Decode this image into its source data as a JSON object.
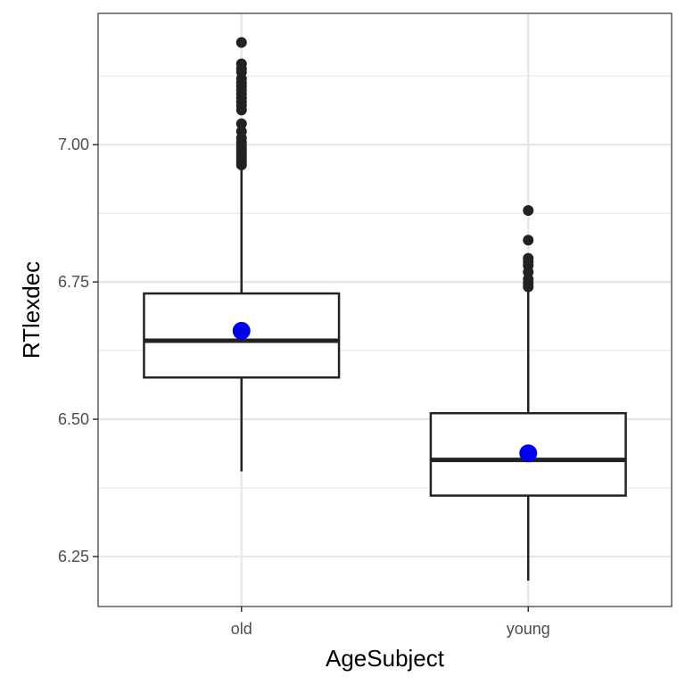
{
  "chart_data": {
    "type": "boxplot",
    "xlabel": "AgeSubject",
    "ylabel": "RTlexdec",
    "ylim": [
      6.159,
      7.239
    ],
    "y_ticks": [
      6.25,
      6.5,
      6.75,
      7.0
    ],
    "y_tick_labels": [
      "6.25",
      "6.50",
      "6.75",
      "7.00"
    ],
    "y_minor_ticks": [
      6.375,
      6.625,
      6.875,
      7.125
    ],
    "grid": true,
    "categories": [
      "old",
      "young"
    ],
    "boxes": [
      {
        "category": "old",
        "whisker_low": 6.405,
        "q1": 6.576,
        "median": 6.643,
        "q3": 6.729,
        "whisker_high": 6.958,
        "mean": 6.661,
        "outliers": [
          6.963,
          6.968,
          6.973,
          6.978,
          6.983,
          6.988,
          6.993,
          6.998,
          7.004,
          7.012,
          7.024,
          7.038,
          7.063,
          7.071,
          7.078,
          7.085,
          7.092,
          7.099,
          7.106,
          7.113,
          7.12,
          7.132,
          7.138,
          7.147,
          7.186
        ]
      },
      {
        "category": "young",
        "whisker_low": 6.206,
        "q1": 6.361,
        "median": 6.426,
        "q3": 6.511,
        "whisker_high": 6.733,
        "mean": 6.438,
        "outliers": [
          6.741,
          6.748,
          6.755,
          6.768,
          6.78,
          6.787,
          6.793,
          6.826,
          6.88
        ]
      }
    ],
    "colors": {
      "box_stroke": "#222222",
      "median": "#222222",
      "mean_point": "#0000ee",
      "outlier": "#222222",
      "grid": "#e6e6e6",
      "panel_border": "#333333"
    }
  }
}
